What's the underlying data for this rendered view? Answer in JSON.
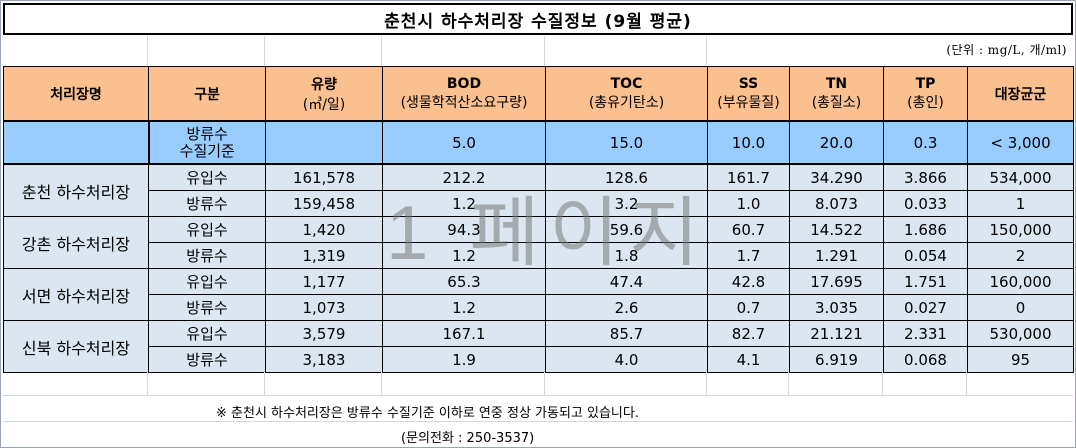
{
  "title": "춘천시 하수처리장 수질정보 (9월 평균)",
  "unit_note": "(단위 : mg/L, 개/ml)",
  "headers": [
    {
      "main": "처리장명",
      "sub": ""
    },
    {
      "main": "구분",
      "sub": ""
    },
    {
      "main": "유량",
      "sub": "(㎥/일)"
    },
    {
      "main": "BOD",
      "sub": "(생물학적산소요구량)"
    },
    {
      "main": "TOC",
      "sub": "(총유기탄소)"
    },
    {
      "main": "SS",
      "sub": "(부유물질)"
    },
    {
      "main": "TN",
      "sub": "(총질소)"
    },
    {
      "main": "TP",
      "sub": "(총인)"
    },
    {
      "main": "대장균군",
      "sub": ""
    }
  ],
  "standard": {
    "label_line1": "방류수",
    "label_line2": "수질기준",
    "flow": "",
    "bod": "5.0",
    "toc": "15.0",
    "ss": "10.0",
    "tn": "20.0",
    "tp": "0.3",
    "coliform": "< 3,000"
  },
  "plants": [
    {
      "name": "춘천 하수처리장",
      "rows": [
        {
          "type": "유입수",
          "flow": "161,578",
          "bod": "212.2",
          "toc": "128.6",
          "ss": "161.7",
          "tn": "34.290",
          "tp": "3.866",
          "coliform": "534,000"
        },
        {
          "type": "방류수",
          "flow": "159,458",
          "bod": "1.2",
          "toc": "3.2",
          "ss": "1.0",
          "tn": "8.073",
          "tp": "0.033",
          "coliform": "1"
        }
      ]
    },
    {
      "name": "강촌 하수처리장",
      "rows": [
        {
          "type": "유입수",
          "flow": "1,420",
          "bod": "94.3",
          "toc": "59.6",
          "ss": "60.7",
          "tn": "14.522",
          "tp": "1.686",
          "coliform": "150,000"
        },
        {
          "type": "방류수",
          "flow": "1,319",
          "bod": "1.2",
          "toc": "1.8",
          "ss": "1.7",
          "tn": "1.291",
          "tp": "0.054",
          "coliform": "2"
        }
      ]
    },
    {
      "name": "서면 하수처리장",
      "rows": [
        {
          "type": "유입수",
          "flow": "1,177",
          "bod": "65.3",
          "toc": "47.4",
          "ss": "42.8",
          "tn": "17.695",
          "tp": "1.751",
          "coliform": "160,000"
        },
        {
          "type": "방류수",
          "flow": "1,073",
          "bod": "1.2",
          "toc": "2.6",
          "ss": "0.7",
          "tn": "3.035",
          "tp": "0.027",
          "coliform": "0"
        }
      ]
    },
    {
      "name": "신북 하수처리장",
      "rows": [
        {
          "type": "유입수",
          "flow": "3,579",
          "bod": "167.1",
          "toc": "85.7",
          "ss": "82.7",
          "tn": "21.121",
          "tp": "2.331",
          "coliform": "530,000"
        },
        {
          "type": "방류수",
          "flow": "3,183",
          "bod": "1.9",
          "toc": "4.0",
          "ss": "4.1",
          "tn": "6.919",
          "tp": "0.068",
          "coliform": "95"
        }
      ]
    }
  ],
  "footnote": "※ 춘천시 하수처리장은 방류수 수질기준 이하로 연중 정상 가동되고 있습니다.",
  "contact": "(문의전화 : 250-3537)",
  "watermark": "1 페이지"
}
